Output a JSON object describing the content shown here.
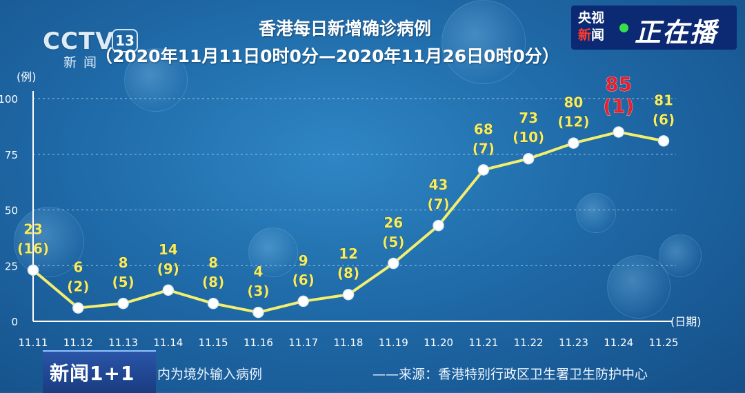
{
  "logo": {
    "main": "CCTV",
    "channel": "13",
    "sub": "新闻"
  },
  "badge": {
    "line1": "央视",
    "line2a": "新",
    "line2b": "闻",
    "live": "正在播",
    "colors": {
      "bg": "#0c2a73",
      "dot": "#35e04c",
      "accent": "#ff3b30"
    }
  },
  "ticker": {
    "label": "新闻1+1"
  },
  "footnote": "内为境外输入病例",
  "source": "——来源：香港特别行政区卫生署卫生防护中心",
  "chart_data": {
    "type": "line",
    "title": "香港每日新增确诊病例",
    "subtitle": "（2020年11月11日0时0分—2020年11月26日0时0分）",
    "xlabel": "(日期)",
    "ylabel": "(例)",
    "ylim": [
      0,
      100
    ],
    "yticks": [
      "0",
      "25",
      "50",
      "75",
      "100"
    ],
    "grid": true,
    "categories": [
      "11.11",
      "11.12",
      "11.13",
      "11.14",
      "11.15",
      "11.16",
      "11.17",
      "11.18",
      "11.19",
      "11.20",
      "11.21",
      "11.22",
      "11.23",
      "11.24",
      "11.25"
    ],
    "series": [
      {
        "values": [
          23,
          6,
          8,
          14,
          8,
          4,
          9,
          12,
          26,
          43,
          68,
          73,
          80,
          85,
          81
        ]
      }
    ],
    "imported": [
      "(16)",
      "(2)",
      "(5)",
      "(9)",
      "(8)",
      "(3)",
      "(6)",
      "(8)",
      "(5)",
      "(7)",
      "(7)",
      "(10)",
      "(12)",
      "(1)",
      "(6)"
    ],
    "value_labels": [
      "23",
      "6",
      "8",
      "14",
      "8",
      "4",
      "9",
      "12",
      "26",
      "43",
      "68",
      "73",
      "80",
      "85",
      "81"
    ],
    "highlight_index": 13,
    "colors": {
      "line": "#f4ee6e",
      "label": "#f6ee62",
      "highlight": "#e8202c",
      "axis": "#ffffff",
      "grid": "#cfe6ff"
    }
  }
}
